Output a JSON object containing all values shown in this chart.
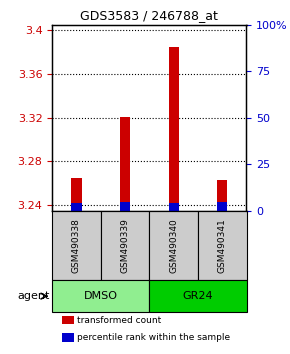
{
  "title": "GDS3583 / 246788_at",
  "samples": [
    "GSM490338",
    "GSM490339",
    "GSM490340",
    "GSM490341"
  ],
  "red_values": [
    3.265,
    3.321,
    3.385,
    3.263
  ],
  "blue_values": [
    3.242,
    3.243,
    3.242,
    3.243
  ],
  "ylim_left": [
    3.235,
    3.405
  ],
  "ylim_right": [
    0,
    100
  ],
  "yticks_left": [
    3.24,
    3.28,
    3.32,
    3.36,
    3.4
  ],
  "yticks_right": [
    0,
    25,
    50,
    75,
    100
  ],
  "ytick_labels_left": [
    "3.24",
    "3.28",
    "3.32",
    "3.36",
    "3.4"
  ],
  "ytick_labels_right": [
    "0",
    "25",
    "50",
    "75",
    "100%"
  ],
  "groups": [
    {
      "label": "DMSO",
      "samples": [
        0,
        1
      ],
      "color": "#90EE90"
    },
    {
      "label": "GR24",
      "samples": [
        2,
        3
      ],
      "color": "#00CC00"
    }
  ],
  "bar_color_red": "#CC0000",
  "bar_color_blue": "#0000CC",
  "bar_width": 0.35,
  "sample_bg_color": "#CCCCCC",
  "agent_label": "agent",
  "legend_red": "transformed count",
  "legend_blue": "percentile rank within the sample",
  "grid_color": "#000000",
  "grid_linestyle": "dotted"
}
